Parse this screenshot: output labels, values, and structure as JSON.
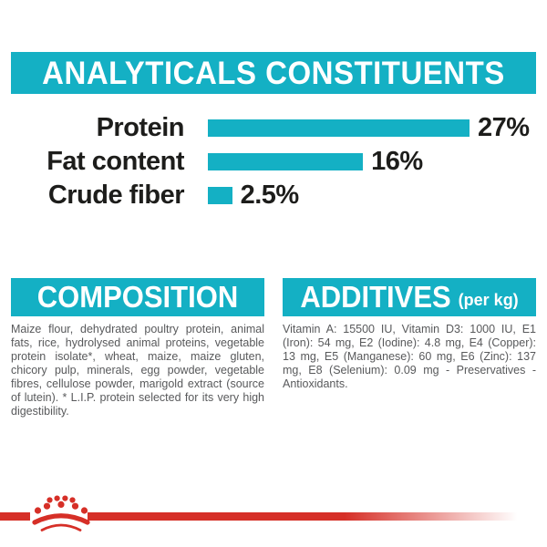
{
  "colors": {
    "teal": "#14b0c4",
    "red": "#d62f27",
    "text_gray": "#58595b",
    "black": "#1d1d1b"
  },
  "header": {
    "title": "ANALYTICALS CONSTITUENTS"
  },
  "chart_data": {
    "type": "bar",
    "orientation": "horizontal",
    "categories": [
      "Protein",
      "Fat content",
      "Crude fiber"
    ],
    "values": [
      27,
      16,
      2.5
    ],
    "value_labels": [
      "27%",
      "16%",
      "2.5%"
    ],
    "unit": "%",
    "xlim": [
      0,
      27
    ],
    "bar_color": "#14b0c4",
    "legend": "none",
    "grid": "off"
  },
  "composition": {
    "title": "COMPOSITION",
    "body": "Maize flour, dehydrated poultry protein, animal fats, rice, hydrolysed animal proteins, vegetable protein isolate*, wheat, maize, maize gluten, chicory pulp, minerals, egg powder, vegetable fibres, cellulose powder, marigold extract (source of lutein). * L.I.P. protein selected for its very high digestibility."
  },
  "additives": {
    "title": "ADDITIVES",
    "title_suffix": "(per kg)",
    "body": "Vitamin A: 15500 IU, Vitamin D3: 1000 IU, E1 (Iron): 54 mg, E2 (Iodine): 4.8 mg, E4 (Copper): 13 mg, E5 (Manganese): 60 mg, E6 (Zinc): 137 mg, E8 (Selenium): 0.09 mg - Preservatives - Antioxidants."
  },
  "footer": {
    "logo": "royal-canin-crown-icon"
  }
}
